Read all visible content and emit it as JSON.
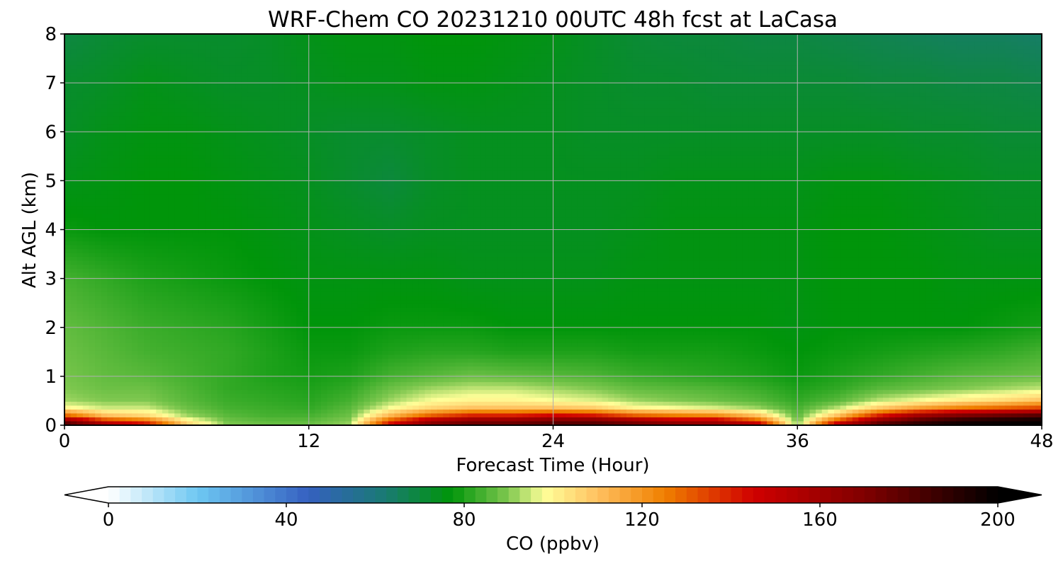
{
  "chart_data": {
    "type": "heatmap",
    "title": "WRF-Chem CO  20231210 00UTC 48h fcst at LaCasa",
    "xlabel": "Forecast Time (Hour)",
    "ylabel": "Alt AGL (km)",
    "xlim": [
      0,
      48
    ],
    "ylim": [
      0,
      8
    ],
    "xticks": [
      "0",
      "12",
      "24",
      "36",
      "48"
    ],
    "yticks": [
      "0",
      "1",
      "2",
      "3",
      "4",
      "5",
      "6",
      "7",
      "8"
    ],
    "grid": true,
    "colorbar": {
      "label": "CO  (ppbv)",
      "range": [
        0,
        200
      ],
      "ticks": [
        "0",
        "40",
        "80",
        "120",
        "160",
        "200"
      ],
      "extend": "both",
      "stops": [
        {
          "v": 0,
          "c": "#ffffff"
        },
        {
          "v": 20,
          "c": "#6ec8f2"
        },
        {
          "v": 45,
          "c": "#3560c0"
        },
        {
          "v": 62,
          "c": "#1a7a74"
        },
        {
          "v": 77,
          "c": "#00950a"
        },
        {
          "v": 90,
          "c": "#80c850"
        },
        {
          "v": 98,
          "c": "#ffff99"
        },
        {
          "v": 110,
          "c": "#ffc060"
        },
        {
          "v": 125,
          "c": "#f08000"
        },
        {
          "v": 145,
          "c": "#d00000"
        },
        {
          "v": 170,
          "c": "#800000"
        },
        {
          "v": 200,
          "c": "#000000"
        }
      ]
    },
    "x_hours": [
      0,
      2,
      4,
      6,
      8,
      10,
      12,
      14,
      16,
      18,
      20,
      22,
      24,
      26,
      28,
      30,
      32,
      34,
      36,
      38,
      40,
      42,
      44,
      46,
      48
    ],
    "y_km": [
      0,
      0.1,
      0.2,
      0.35,
      0.5,
      0.75,
      1.0,
      1.5,
      2.0,
      3.0,
      4.0,
      5.0,
      6.0,
      7.0,
      8.0
    ],
    "co_ppbv": [
      [
        190,
        165,
        150,
        110,
        90,
        88,
        88,
        92,
        150,
        175,
        180,
        180,
        185,
        185,
        180,
        175,
        170,
        160,
        90,
        160,
        185,
        195,
        200,
        200,
        200
      ],
      [
        165,
        135,
        125,
        100,
        88,
        86,
        86,
        90,
        130,
        155,
        165,
        165,
        170,
        170,
        160,
        150,
        150,
        130,
        88,
        130,
        165,
        180,
        190,
        195,
        198
      ],
      [
        130,
        110,
        105,
        92,
        86,
        84,
        84,
        88,
        112,
        130,
        140,
        140,
        145,
        142,
        130,
        125,
        122,
        110,
        86,
        110,
        140,
        160,
        170,
        175,
        180
      ],
      [
        100,
        95,
        95,
        88,
        84,
        83,
        82,
        86,
        98,
        106,
        110,
        110,
        110,
        108,
        100,
        98,
        96,
        92,
        84,
        94,
        108,
        118,
        125,
        130,
        135
      ],
      [
        92,
        90,
        90,
        86,
        83,
        82,
        81,
        84,
        92,
        98,
        100,
        100,
        98,
        96,
        92,
        90,
        88,
        86,
        82,
        86,
        94,
        98,
        102,
        105,
        110
      ],
      [
        90,
        88,
        88,
        85,
        82,
        81,
        80,
        82,
        88,
        92,
        94,
        94,
        92,
        90,
        87,
        86,
        85,
        83,
        80,
        82,
        86,
        88,
        90,
        92,
        94
      ],
      [
        89,
        87,
        86,
        84,
        82,
        80,
        79,
        80,
        84,
        86,
        88,
        87,
        86,
        85,
        83,
        82,
        81,
        80,
        78,
        80,
        82,
        84,
        86,
        87,
        88
      ],
      [
        88,
        86,
        84,
        83,
        82,
        80,
        78,
        78,
        80,
        81,
        81,
        80,
        80,
        80,
        79,
        79,
        79,
        78,
        77,
        78,
        79,
        80,
        81,
        82,
        84
      ],
      [
        87,
        85,
        83,
        82,
        81,
        79,
        77,
        77,
        78,
        78,
        78,
        77,
        77,
        77,
        77,
        77,
        77,
        77,
        76,
        77,
        77,
        77,
        77,
        78,
        79
      ],
      [
        84,
        82,
        80,
        79,
        78,
        77,
        76,
        76,
        76,
        76,
        75,
        75,
        75,
        75,
        76,
        76,
        76,
        76,
        76,
        77,
        77,
        77,
        76,
        76,
        76
      ],
      [
        78,
        77,
        77,
        77,
        77,
        76,
        75,
        74,
        73,
        74,
        74,
        74,
        74,
        74,
        75,
        76,
        76,
        76,
        76,
        77,
        77,
        76,
        75,
        74,
        74
      ],
      [
        75,
        76,
        77,
        77,
        76,
        75,
        74,
        72,
        70,
        73,
        74,
        74,
        74,
        74,
        74,
        75,
        75,
        75,
        75,
        76,
        76,
        75,
        74,
        73,
        73
      ],
      [
        73,
        75,
        76,
        76,
        75,
        74,
        73,
        72,
        72,
        73,
        74,
        74,
        74,
        73,
        73,
        73,
        73,
        73,
        73,
        73,
        73,
        72,
        72,
        71,
        71
      ],
      [
        72,
        73,
        75,
        74,
        73,
        73,
        74,
        75,
        75,
        76,
        76,
        75,
        74,
        73,
        72,
        72,
        71,
        71,
        71,
        71,
        70,
        70,
        69,
        69,
        68
      ],
      [
        69,
        71,
        72,
        72,
        72,
        73,
        75,
        76,
        76,
        77,
        77,
        76,
        75,
        73,
        71,
        70,
        70,
        69,
        69,
        68,
        67,
        66,
        65,
        65,
        64
      ]
    ]
  }
}
